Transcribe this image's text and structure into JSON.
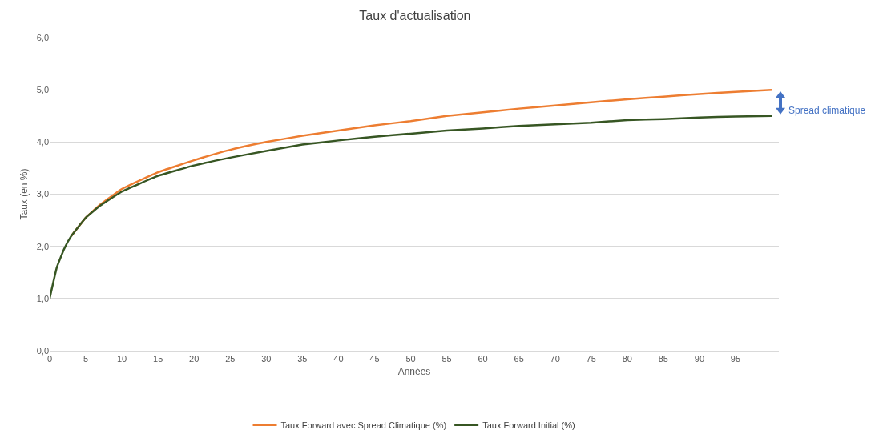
{
  "chart_data": {
    "type": "line",
    "title": "Taux d'actualisation",
    "xlabel": "Années",
    "ylabel": "Taux (en %)",
    "x": [
      0,
      1,
      2,
      3,
      5,
      7,
      10,
      15,
      20,
      25,
      30,
      35,
      40,
      45,
      50,
      55,
      60,
      65,
      70,
      75,
      80,
      85,
      90,
      95,
      100
    ],
    "series": [
      {
        "name": "Taux Forward avec Spread Climatique (%)",
        "color": "#ed7d31",
        "values": [
          null,
          null,
          null,
          2.2,
          2.55,
          2.8,
          3.1,
          3.42,
          3.65,
          3.85,
          4.0,
          4.12,
          4.22,
          4.32,
          4.4,
          4.5,
          4.57,
          4.64,
          4.7,
          4.76,
          4.82,
          4.87,
          4.92,
          4.96,
          5.0
        ]
      },
      {
        "name": "Taux Forward Initial (%)",
        "color": "#375623",
        "values": [
          1.0,
          1.6,
          1.95,
          2.2,
          2.55,
          2.78,
          3.05,
          3.35,
          3.55,
          3.7,
          3.83,
          3.95,
          4.03,
          4.1,
          4.16,
          4.22,
          4.26,
          4.31,
          4.34,
          4.37,
          4.42,
          4.44,
          4.47,
          4.49,
          4.5
        ]
      }
    ],
    "xlim": [
      0,
      101
    ],
    "xticks": [
      0,
      5,
      10,
      15,
      20,
      25,
      30,
      35,
      40,
      45,
      50,
      55,
      60,
      65,
      70,
      75,
      80,
      85,
      90,
      95
    ],
    "ylim": [
      0,
      6
    ],
    "yticks": [
      {
        "value": 0,
        "label": "0,0"
      },
      {
        "value": 1,
        "label": "1,0"
      },
      {
        "value": 2,
        "label": "2,0"
      },
      {
        "value": 3,
        "label": "3,0"
      },
      {
        "value": 4,
        "label": "4,0"
      },
      {
        "value": 5,
        "label": "5,0"
      },
      {
        "value": 6,
        "label": "6,0"
      }
    ],
    "annotations": [
      "Spread climatique"
    ],
    "grid": "y",
    "legend": "bottom",
    "marker": "none",
    "line_style": "solid"
  }
}
